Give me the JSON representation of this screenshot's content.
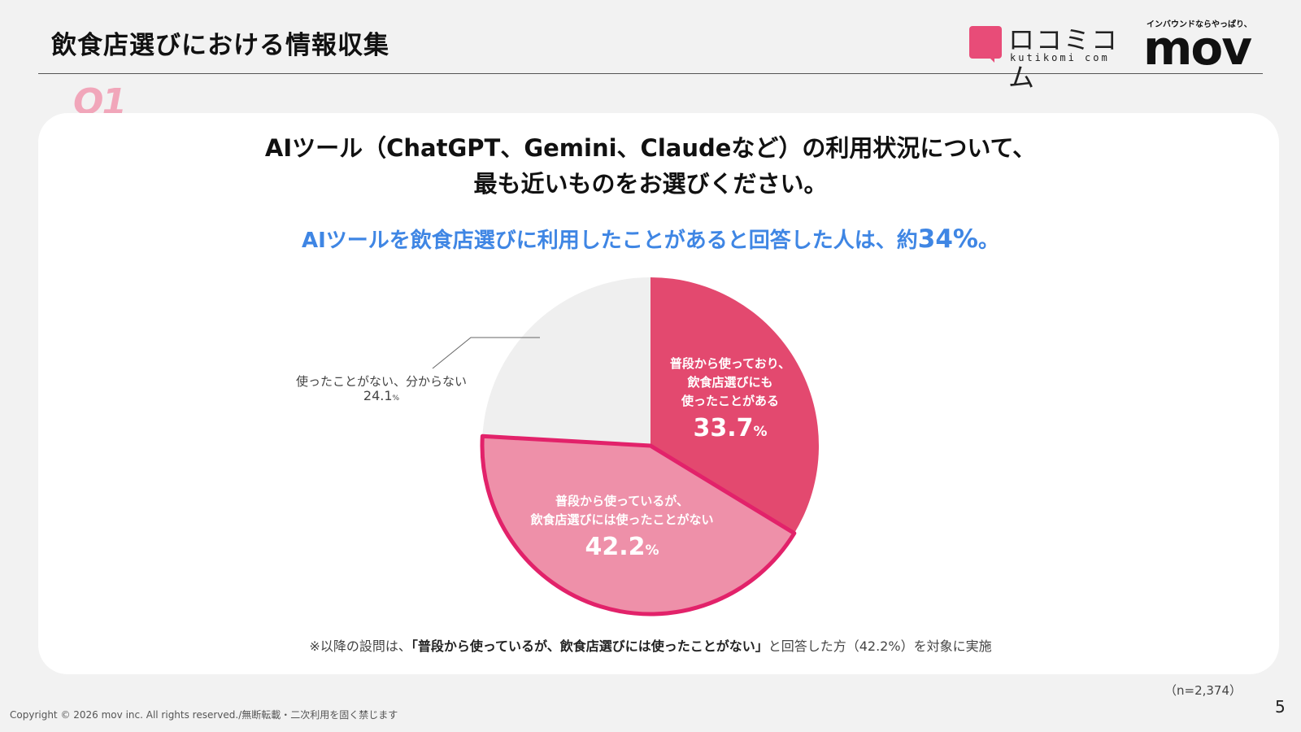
{
  "header": {
    "title": "飲食店選びにおける情報収集",
    "logo_kuchikomi_jp": "ロコミコム",
    "logo_kuchikomi_en": "kutikomi com",
    "logo_mov_tagline": "インバウンドならやっぱり、",
    "logo_mov_word": "mov"
  },
  "question_badge": "Q1",
  "question_line1": "AIツール（ChatGPT、Gemini、Claudeなど）の利用状況について、",
  "question_line2": "最も近いものをお選びください。",
  "headline_prefix": "AIツールを飲食店選びに利用したことがあると回答した人は、約",
  "headline_value": "34%",
  "headline_suffix": "。",
  "chart_data": {
    "type": "pie",
    "start_angle_deg": 0,
    "direction": "clockwise",
    "slices": [
      {
        "label_lines": [
          "普段から使っており、",
          "飲食店選びにも",
          "使ったことがある"
        ],
        "value": 33.7,
        "display": "33.7",
        "unit": "%",
        "color": "#e3496f"
      },
      {
        "label_lines": [
          "普段から使っているが、",
          "飲食店選びには使ったことがない"
        ],
        "value": 42.2,
        "display": "42.2",
        "unit": "%",
        "color": "#ee90a9",
        "highlight_stroke": "#e2226a"
      },
      {
        "label_lines": [
          "使ったことがない、分からない"
        ],
        "value": 24.1,
        "display": "24.1",
        "unit": "%",
        "color": "#efefef"
      }
    ]
  },
  "footnote_prefix": "※以降の設問は、",
  "footnote_bold": "「普段から使っているが、飲食店選びには使ったことがない」",
  "footnote_suffix": "と回答した方（42.2%）を対象に実施",
  "sample_size": "（n=2,374）",
  "page_number": "5",
  "copyright": "Copyright © 2026 mov inc. All rights reserved./無断転載・二次利用を固く禁じます"
}
